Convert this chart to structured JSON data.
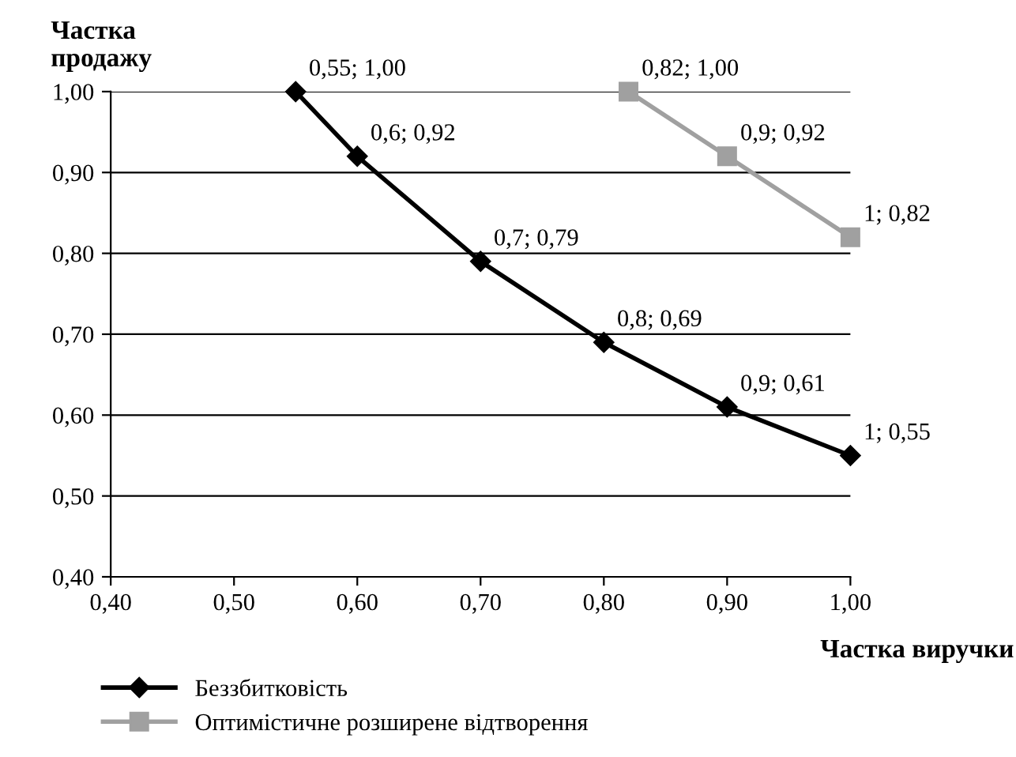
{
  "chart_data": {
    "type": "line",
    "xlabel": "Частка виручки",
    "ylabel": "Частка\nпродажу",
    "xlim": [
      0.4,
      1.0
    ],
    "ylim": [
      0.4,
      1.0
    ],
    "xticks": [
      {
        "value": 0.4,
        "label": "0,40"
      },
      {
        "value": 0.5,
        "label": "0,50"
      },
      {
        "value": 0.6,
        "label": "0,60"
      },
      {
        "value": 0.7,
        "label": "0,70"
      },
      {
        "value": 0.8,
        "label": "0,80"
      },
      {
        "value": 0.9,
        "label": "0,90"
      },
      {
        "value": 1.0,
        "label": "1,00"
      }
    ],
    "yticks": [
      {
        "value": 0.4,
        "label": "0,40"
      },
      {
        "value": 0.5,
        "label": "0,50"
      },
      {
        "value": 0.6,
        "label": "0,60"
      },
      {
        "value": 0.7,
        "label": "0,70"
      },
      {
        "value": 0.8,
        "label": "0,80"
      },
      {
        "value": 0.9,
        "label": "0,90"
      },
      {
        "value": 1.0,
        "label": "1,00"
      }
    ],
    "grid": "y",
    "legend": "bottom",
    "series": [
      {
        "name": "Беззбитковість",
        "color": "#000000",
        "marker": "diamond",
        "x": [
          0.55,
          0.6,
          0.7,
          0.8,
          0.9,
          1.0
        ],
        "values": [
          1.0,
          0.92,
          0.79,
          0.69,
          0.61,
          0.55
        ],
        "value_labels": [
          "0,55; 1,00",
          "0,6; 0,92",
          "0,7; 0,79",
          "0,8; 0,69",
          "0,9; 0,61",
          "1; 0,55"
        ]
      },
      {
        "name": "Оптимістичне розширене відтворення",
        "color": "#a0a0a0",
        "marker": "square",
        "x": [
          0.82,
          0.9,
          1.0
        ],
        "values": [
          1.0,
          0.92,
          0.82
        ],
        "value_labels": [
          "0,82; 1,00",
          "0,9; 0,92",
          "1; 0,82"
        ]
      }
    ]
  }
}
